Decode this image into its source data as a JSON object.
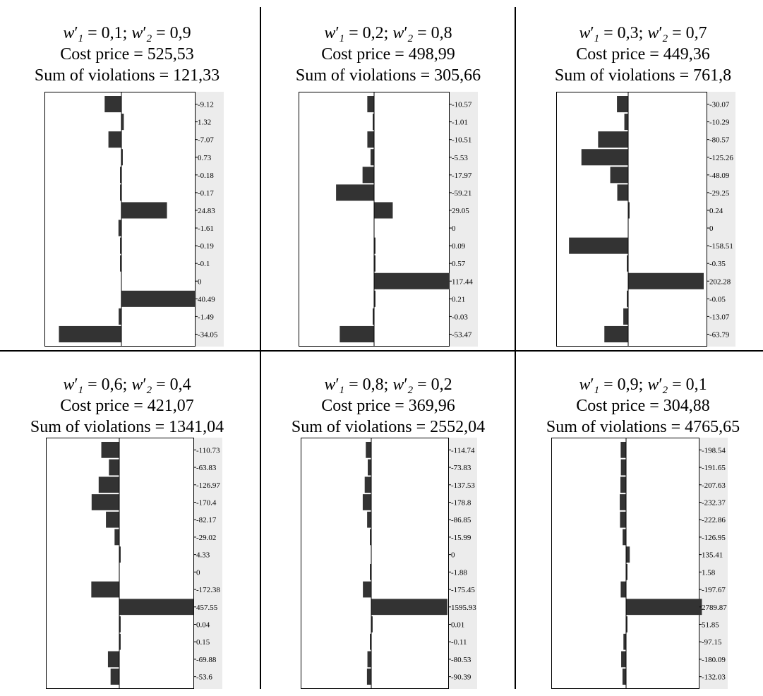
{
  "chart_data": [
    {
      "type": "bar",
      "orientation": "horizontal",
      "title_w1": "0,1",
      "title_w2": "0,9",
      "cost_price_label": "Cost price = 525,53",
      "violations_label": "Sum of violations = 121,33",
      "values": [
        -9.12,
        1.32,
        -7.07,
        0.73,
        -0.18,
        -0.17,
        24.83,
        -1.61,
        -0.19,
        -0.1,
        0,
        40.49,
        -1.49,
        -34.05
      ],
      "labels": [
        "-9.12",
        "1.32",
        "-7.07",
        "0.73",
        "-0.18",
        "-0.17",
        "24.83",
        "-1.61",
        "-0.19",
        "-0.1",
        "0",
        "40.49",
        "-1.49",
        "-34.05"
      ]
    },
    {
      "type": "bar",
      "orientation": "horizontal",
      "title_w1": "0,2",
      "title_w2": "0,8",
      "cost_price_label": "Cost price = 498,99",
      "violations_label": "Sum of violations = 305,66",
      "values": [
        -10.57,
        -1.01,
        -10.51,
        -5.53,
        -17.97,
        -59.21,
        29.05,
        0,
        0.09,
        0.57,
        117.44,
        0.21,
        -0.03,
        -53.47
      ],
      "labels": [
        "-10.57",
        "-1.01",
        "-10.51",
        "-5.53",
        "-17.97",
        "-59.21",
        "29.05",
        "0",
        "0.09",
        "0.57",
        "117.44",
        "0.21",
        "-0.03",
        "-53.47"
      ]
    },
    {
      "type": "bar",
      "orientation": "horizontal",
      "title_w1": "0,3",
      "title_w2": "0,7",
      "cost_price_label": "Cost price = 449,36",
      "violations_label": "Sum of violations = 761,8",
      "values": [
        -30.07,
        -10.29,
        -80.57,
        -125.26,
        -48.09,
        -29.25,
        0.24,
        0,
        -158.51,
        -0.35,
        202.28,
        -0.05,
        -13.07,
        -63.79
      ],
      "labels": [
        "-30.07",
        "-10.29",
        "-80.57",
        "-125.26",
        "-48.09",
        "-29.25",
        "0.24",
        "0",
        "-158.51",
        "-0.35",
        "202.28",
        "-0.05",
        "-13.07",
        "-63.79"
      ]
    },
    {
      "type": "bar",
      "orientation": "horizontal",
      "title_w1": "0,6",
      "title_w2": "0,4",
      "cost_price_label": "Cost price = 421,07",
      "violations_label": "Sum of violations = 1341,04",
      "values": [
        -110.73,
        -63.83,
        -126.97,
        -170.4,
        -82.17,
        -29.02,
        4.33,
        0,
        -172.38,
        457.55,
        0.04,
        0.15,
        -69.88,
        -53.6
      ],
      "labels": [
        "-110.73",
        "-63.83",
        "-126.97",
        "-170.4",
        "-82.17",
        "-29.02",
        "4.33",
        "0",
        "-172.38",
        "457.55",
        "0.04",
        "0.15",
        "-69.88",
        "-53.6"
      ]
    },
    {
      "type": "bar",
      "orientation": "horizontal",
      "title_w1": "0,8",
      "title_w2": "0,2",
      "cost_price_label": "Cost price = 369,96",
      "violations_label": "Sum of violations = 2552,04",
      "values": [
        -114.74,
        -73.83,
        -137.53,
        -178.8,
        -86.85,
        -15.99,
        0,
        -1.88,
        -175.45,
        1595.93,
        0.01,
        -0.11,
        -80.53,
        -90.39
      ],
      "labels": [
        "-114.74",
        "-73.83",
        "-137.53",
        "-178.8",
        "-86.85",
        "-15.99",
        "0",
        "-1.88",
        "-175.45",
        "1595.93",
        "0.01",
        "-0.11",
        "-80.53",
        "-90.39"
      ]
    },
    {
      "type": "bar",
      "orientation": "horizontal",
      "title_w1": "0,9",
      "title_w2": "0,1",
      "cost_price_label": "Cost price = 304,88",
      "violations_label": "Sum of violations = 4765,65",
      "values": [
        -198.54,
        -191.65,
        -207.63,
        -232.37,
        -222.86,
        -126.95,
        135.41,
        1.58,
        -197.67,
        2789.87,
        51.85,
        -97.15,
        -180.09,
        -132.03
      ],
      "labels": [
        "-198.54",
        "-191.65",
        "-207.63",
        "-232.37",
        "-222.86",
        "-126.95",
        "135.41",
        "1.58",
        "-197.67",
        "2789.87",
        "51.85",
        "-97.15",
        "-180.09",
        "-132.03"
      ]
    }
  ]
}
